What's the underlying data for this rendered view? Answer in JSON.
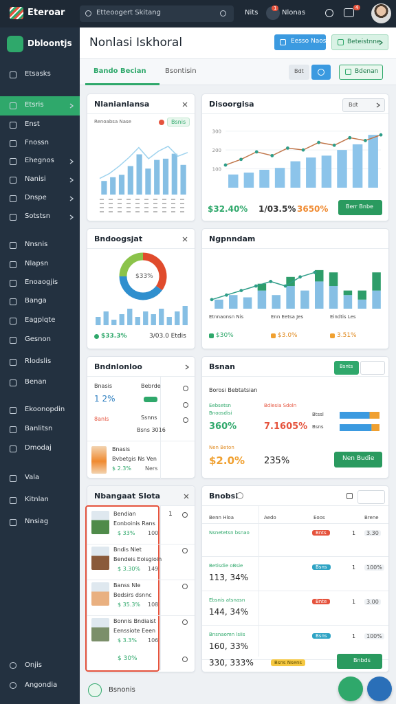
{
  "topbar": {
    "logo": "Eteroar",
    "search": "Etteoogert Skitang",
    "label1": "Nits",
    "badge1": "1",
    "label2": "Nlonas",
    "badge2": "4"
  },
  "sidebar": {
    "brand": "Dbloontjs",
    "items": [
      {
        "label": "Etsasks"
      },
      {
        "label": "Etsris",
        "active": true,
        "chevron": true
      },
      {
        "label": "Enst"
      },
      {
        "label": "Fnossn"
      },
      {
        "label": "Ehegnos",
        "chevron": true
      },
      {
        "label": "Nanisi",
        "chevron": true
      },
      {
        "label": "Dnspe",
        "chevron": true
      },
      {
        "label": "Sotstsn",
        "chevron": true
      },
      {
        "label": "Nnsnis"
      },
      {
        "label": "Nlapsn"
      },
      {
        "label": "Enoaogjis"
      },
      {
        "label": "Banga"
      },
      {
        "label": "Eagplqte"
      },
      {
        "label": "Gesnon"
      },
      {
        "label": "Rlodslis"
      },
      {
        "label": "Benan"
      },
      {
        "label": "Ekoonopdin"
      },
      {
        "label": "Banlitsn"
      },
      {
        "label": "Dmodaj"
      },
      {
        "label": "Vala"
      },
      {
        "label": "Kitnlan"
      },
      {
        "label": "Nnsiag"
      }
    ],
    "footer_items": [
      "Onjis",
      "Angondia"
    ]
  },
  "header": {
    "title": "Nonlasi Iskhoral",
    "primary_button": "Eesso Naos",
    "secondary_button": "Beteistnne"
  },
  "tabs": {
    "items": [
      "Bando Becian",
      "Bsontisin"
    ],
    "filter": "Bdt",
    "button": "Bdenan"
  },
  "cards": [
    {
      "title": "Nlanianlansa",
      "legend": "Renoabsa Nase",
      "badge": "Bsnis",
      "ylim": [
        0,
        10
      ],
      "bars": [
        2.2,
        2.8,
        3.2,
        4.6,
        6.5,
        4.2,
        5.6,
        5.8,
        6.6,
        4.8
      ],
      "line": [
        2.6,
        3.4,
        4.6,
        6,
        7.6,
        5.8,
        7,
        7.8,
        6.2,
        6.8
      ],
      "bar_color": "#86bfe4",
      "line_color": "#9fd3ee"
    },
    {
      "title": "Disoorgisa",
      "control": "Bdt",
      "ylim": [
        0,
        350
      ],
      "yticks": [
        100,
        200,
        300
      ],
      "bars": [
        70,
        80,
        95,
        105,
        140,
        160,
        170,
        200,
        230,
        280
      ],
      "line": [
        120,
        150,
        190,
        170,
        210,
        200,
        240,
        225,
        265,
        250,
        280
      ],
      "bar_color": "#8cc4ea",
      "line_color": "#c0764a",
      "dot_color": "#2e9d88",
      "stats": [
        "$32.40%",
        "1/03.5%",
        "3650%"
      ],
      "stat_colors": [
        "#2fa86b",
        "#333",
        "#f08a30"
      ],
      "button": "Berr Bnbe"
    },
    {
      "title": "Bndoogsjat",
      "donut": [
        35,
        40,
        25
      ],
      "donut_colors": [
        "#e04b2c",
        "#2f8fce",
        "#8bc34a"
      ],
      "center": "$33%",
      "ylim": [
        0,
        8
      ],
      "bars": [
        3,
        5,
        2,
        4,
        6,
        3,
        5,
        4,
        6,
        3,
        5,
        7
      ],
      "bar_color": "#86bfe4",
      "stats": [
        "$33.3%",
        "3/03.0 Etdis"
      ]
    },
    {
      "title": "Ngpnndam",
      "ylim": [
        0,
        10
      ],
      "bars": [
        2,
        3,
        2.5,
        4,
        3,
        5,
        4,
        6,
        5,
        3,
        2,
        4
      ],
      "stack": [
        0,
        0,
        0,
        1.5,
        0,
        2,
        0,
        2.5,
        3,
        1,
        2,
        4
      ],
      "line": [
        2,
        3,
        4,
        5,
        6,
        5,
        7,
        8
      ],
      "bar_color": "#86bfe4",
      "stack_color": "#2e9d6a",
      "line_color": "#2e9d88",
      "labels": [
        "Etnnaonsn Nis",
        "Enn Eetsa Jes",
        "Eindtis Les"
      ],
      "values": [
        "$30%",
        "$3.0%",
        "3.51%"
      ]
    },
    {
      "title": "Bndnlonloo",
      "label1": "Bnasis",
      "side1": "Bebrde",
      "value1": "1 2%",
      "label2": "8anls",
      "side2": "Ssnns",
      "value2": "Bsns 3016",
      "label3": "Bnasis",
      "sub3": "Bvbetgis Ns Ven",
      "value3": "$ 2.3%",
      "side3": "Ners"
    },
    {
      "title": "Bsnan",
      "button": "Bsnts",
      "subtitle": "Borosi Bebtatsian",
      "col1_label": "Eebsetsn Bnoosdisi",
      "col1_value": "360%",
      "col2_label": "Bdlesia Sdoln",
      "col2_value": "7.1605%",
      "bar_labels": [
        "Btssl",
        "Bsns"
      ],
      "progress": [
        [
          75,
          25
        ],
        [
          80,
          20
        ]
      ],
      "total_label": "Nen Beton",
      "total1": "$2.0%",
      "total2": "235%",
      "action": "Nen Budie"
    },
    {
      "title": "Nbangaat Slota",
      "people": [
        {
          "name": "Bendian",
          "sub": "Eonboinis Rans",
          "value": "$ 33%",
          "num": "1",
          "meta": "100"
        },
        {
          "name": "Bndis Nlet",
          "sub": "Bendeis Eoisgioin",
          "value": "$ 3.30%",
          "meta": "149"
        },
        {
          "name": "Banss Nle",
          "sub": "Bedsirs dsnnc",
          "value": "$ 35.3%",
          "meta": "108"
        },
        {
          "name": "Bonnis Bndiaist",
          "sub": "Eenssiote Eeen",
          "value": "$ 3.3%",
          "meta": "106"
        }
      ],
      "footer": "$ 30%"
    },
    {
      "title": "Bnobsi",
      "columns": [
        "Benn Hloa",
        "Aedo",
        "Eoos",
        "Brene"
      ],
      "rows": [
        {
          "label": "Nsnetetsn bsnao",
          "pill": "Bnts",
          "pill_color": "#e5533d",
          "num": "1",
          "value": "3.30"
        },
        {
          "label": "Betisdie oBsie",
          "big": "113, 34%",
          "pill": "Bsns",
          "pill_color": "#2ea3c4",
          "num": "1",
          "value": "100%"
        },
        {
          "label": "Ebsnis atsnasn",
          "big": "144, 34%",
          "pill": "Bnte",
          "pill_color": "#e5533d",
          "num": "1",
          "value": "3.00"
        },
        {
          "label": "Bnsnaomn lsiis",
          "big": "160, 33%",
          "pill": "Bsns",
          "pill_color": "#2ea3c4",
          "num": "1",
          "value": "100%"
        }
      ],
      "footer": "330, 333%",
      "footer_pill": "Bsns Nsens",
      "footer_button": "Bnbds"
    }
  ],
  "bottom": {
    "label": "Bsnonis"
  }
}
